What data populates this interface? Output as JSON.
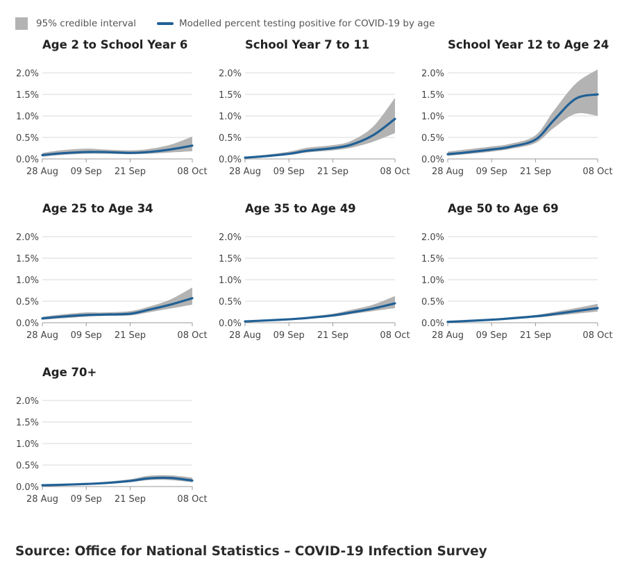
{
  "legend": {
    "band_label": "95% credible interval",
    "line_label": "Modelled percent testing positive for COVID-19 by age"
  },
  "colors": {
    "line": "#206095",
    "band": "#b3b3b3",
    "grid": "#d9d9d9"
  },
  "source": "Source: Office for National Statistics – COVID-19 Infection Survey",
  "chart_data": [
    {
      "type": "area",
      "title": "Age 2 to School Year 6",
      "x": [
        "28 Aug",
        "02 Sep",
        "09 Sep",
        "14 Sep",
        "21 Sep",
        "26 Sep",
        "02 Oct",
        "08 Oct"
      ],
      "xticks": [
        "28 Aug",
        "09 Sep",
        "21 Sep",
        "08 Oct"
      ],
      "yticks": [
        "0.0%",
        "0.5%",
        "1.0%",
        "1.5%",
        "2.0%"
      ],
      "ylim": [
        0,
        2.0
      ],
      "series": [
        {
          "name": "Modelled percent testing positive for COVID-19 by age",
          "values": [
            0.09,
            0.13,
            0.16,
            0.16,
            0.14,
            0.16,
            0.22,
            0.31
          ]
        },
        {
          "name": "95% credible interval",
          "lower": [
            0.05,
            0.09,
            0.12,
            0.12,
            0.11,
            0.12,
            0.15,
            0.18
          ],
          "upper": [
            0.14,
            0.2,
            0.24,
            0.22,
            0.2,
            0.23,
            0.33,
            0.52
          ]
        }
      ]
    },
    {
      "type": "area",
      "title": "School Year 7 to 11",
      "x": [
        "28 Aug",
        "02 Sep",
        "09 Sep",
        "14 Sep",
        "21 Sep",
        "26 Sep",
        "02 Oct",
        "08 Oct"
      ],
      "xticks": [
        "28 Aug",
        "09 Sep",
        "21 Sep",
        "08 Oct"
      ],
      "yticks": [
        "0.0%",
        "0.5%",
        "1.0%",
        "1.5%",
        "2.0%"
      ],
      "ylim": [
        0,
        2.0
      ],
      "series": [
        {
          "name": "Modelled percent testing positive for COVID-19 by age",
          "values": [
            0.03,
            0.06,
            0.12,
            0.19,
            0.25,
            0.33,
            0.55,
            0.93
          ]
        },
        {
          "name": "95% credible interval",
          "lower": [
            0.02,
            0.04,
            0.09,
            0.15,
            0.2,
            0.26,
            0.4,
            0.6
          ],
          "upper": [
            0.05,
            0.09,
            0.17,
            0.26,
            0.32,
            0.42,
            0.75,
            1.42
          ]
        }
      ]
    },
    {
      "type": "area",
      "title": "School Year 12 to Age 24",
      "x": [
        "28 Aug",
        "02 Sep",
        "09 Sep",
        "14 Sep",
        "21 Sep",
        "26 Sep",
        "02 Oct",
        "08 Oct"
      ],
      "xticks": [
        "28 Aug",
        "09 Sep",
        "21 Sep",
        "08 Oct"
      ],
      "yticks": [
        "0.0%",
        "0.5%",
        "1.0%",
        "1.5%",
        "2.0%"
      ],
      "ylim": [
        0,
        2.0
      ],
      "series": [
        {
          "name": "Modelled percent testing positive for COVID-19 by age",
          "values": [
            0.11,
            0.15,
            0.22,
            0.28,
            0.45,
            0.9,
            1.4,
            1.5
          ]
        },
        {
          "name": "95% credible interval",
          "lower": [
            0.07,
            0.11,
            0.17,
            0.23,
            0.37,
            0.72,
            1.05,
            1.0
          ],
          "upper": [
            0.17,
            0.22,
            0.29,
            0.35,
            0.55,
            1.12,
            1.75,
            2.08
          ]
        }
      ]
    },
    {
      "type": "area",
      "title": "Age 25 to Age 34",
      "x": [
        "28 Aug",
        "02 Sep",
        "09 Sep",
        "14 Sep",
        "21 Sep",
        "26 Sep",
        "02 Oct",
        "08 Oct"
      ],
      "xticks": [
        "28 Aug",
        "09 Sep",
        "21 Sep",
        "08 Oct"
      ],
      "yticks": [
        "0.0%",
        "0.5%",
        "1.0%",
        "1.5%",
        "2.0%"
      ],
      "ylim": [
        0,
        2.0
      ],
      "series": [
        {
          "name": "Modelled percent testing positive for COVID-19 by age",
          "values": [
            0.1,
            0.14,
            0.18,
            0.19,
            0.21,
            0.3,
            0.42,
            0.57
          ]
        },
        {
          "name": "95% credible interval",
          "lower": [
            0.07,
            0.1,
            0.14,
            0.16,
            0.17,
            0.24,
            0.33,
            0.42
          ],
          "upper": [
            0.14,
            0.19,
            0.24,
            0.24,
            0.27,
            0.37,
            0.54,
            0.82
          ]
        }
      ]
    },
    {
      "type": "area",
      "title": "Age 35 to Age 49",
      "x": [
        "28 Aug",
        "02 Sep",
        "09 Sep",
        "14 Sep",
        "21 Sep",
        "26 Sep",
        "02 Oct",
        "08 Oct"
      ],
      "xticks": [
        "28 Aug",
        "09 Sep",
        "21 Sep",
        "08 Oct"
      ],
      "yticks": [
        "0.0%",
        "0.5%",
        "1.0%",
        "1.5%",
        "2.0%"
      ],
      "ylim": [
        0,
        2.0
      ],
      "series": [
        {
          "name": "Modelled percent testing positive for COVID-19 by age",
          "values": [
            0.03,
            0.05,
            0.08,
            0.11,
            0.17,
            0.24,
            0.33,
            0.45
          ]
        },
        {
          "name": "95% credible interval",
          "lower": [
            0.02,
            0.04,
            0.06,
            0.09,
            0.14,
            0.2,
            0.27,
            0.34
          ],
          "upper": [
            0.04,
            0.06,
            0.1,
            0.14,
            0.21,
            0.3,
            0.42,
            0.62
          ]
        }
      ]
    },
    {
      "type": "area",
      "title": "Age 50 to Age 69",
      "x": [
        "28 Aug",
        "02 Sep",
        "09 Sep",
        "14 Sep",
        "21 Sep",
        "26 Sep",
        "02 Oct",
        "08 Oct"
      ],
      "xticks": [
        "28 Aug",
        "09 Sep",
        "21 Sep",
        "08 Oct"
      ],
      "yticks": [
        "0.0%",
        "0.5%",
        "1.0%",
        "1.5%",
        "2.0%"
      ],
      "ylim": [
        0,
        2.0
      ],
      "series": [
        {
          "name": "Modelled percent testing positive for COVID-19 by age",
          "values": [
            0.02,
            0.04,
            0.07,
            0.1,
            0.15,
            0.2,
            0.27,
            0.34
          ]
        },
        {
          "name": "95% credible interval",
          "lower": [
            0.01,
            0.03,
            0.05,
            0.08,
            0.12,
            0.16,
            0.21,
            0.26
          ],
          "upper": [
            0.03,
            0.05,
            0.09,
            0.13,
            0.18,
            0.25,
            0.34,
            0.44
          ]
        }
      ]
    },
    {
      "type": "area",
      "title": "Age 70+",
      "x": [
        "28 Aug",
        "02 Sep",
        "09 Sep",
        "14 Sep",
        "21 Sep",
        "26 Sep",
        "02 Oct",
        "08 Oct"
      ],
      "xticks": [
        "28 Aug",
        "09 Sep",
        "21 Sep",
        "08 Oct"
      ],
      "yticks": [
        "0.0%",
        "0.5%",
        "1.0%",
        "1.5%",
        "2.0%"
      ],
      "ylim": [
        0,
        2.0
      ],
      "series": [
        {
          "name": "Modelled percent testing positive for COVID-19 by age",
          "values": [
            0.03,
            0.04,
            0.06,
            0.08,
            0.13,
            0.19,
            0.2,
            0.14
          ]
        },
        {
          "name": "95% credible interval",
          "lower": [
            0.02,
            0.03,
            0.04,
            0.06,
            0.1,
            0.15,
            0.15,
            0.1
          ],
          "upper": [
            0.05,
            0.06,
            0.08,
            0.11,
            0.17,
            0.25,
            0.26,
            0.21
          ]
        }
      ]
    }
  ]
}
